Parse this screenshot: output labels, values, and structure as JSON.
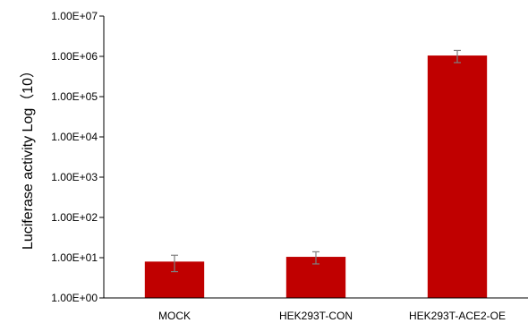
{
  "chart_data": {
    "type": "bar",
    "title": "",
    "xlabel": "",
    "ylabel": "Luciferase activity Log（10）",
    "yscale": "log",
    "ylim": [
      1,
      10000000
    ],
    "yticks": [
      "1.00E+00",
      "1.00E+01",
      "1.00E+02",
      "1.00E+03",
      "1.00E+04",
      "1.00E+05",
      "1.00E+06",
      "1.00E+07"
    ],
    "categories": [
      "MOCK",
      "HEK293T-CON",
      "HEK293T-ACE2-OE"
    ],
    "values": [
      8,
      10.5,
      1050000
    ],
    "errors": [
      3.5,
      3.5,
      350000
    ],
    "grid": false,
    "legend": "none",
    "bar_color": "#c00000",
    "error_color": "#7f7f7f",
    "axis_color": "#000000"
  }
}
